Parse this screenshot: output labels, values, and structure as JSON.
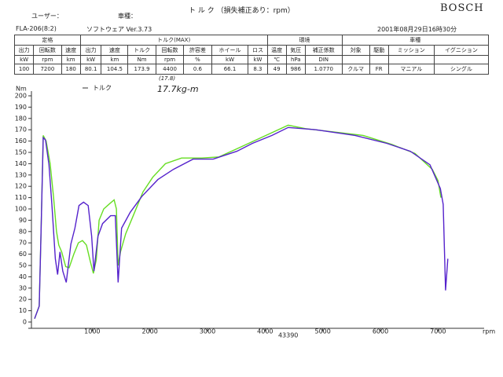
{
  "header": {
    "title": "ト ル ク （損失補正あり：rpm）",
    "brand": "BOSCH",
    "user_label": "ユーザー：",
    "vehicle_label": "車種：",
    "machine": "FLA-206(8:2)",
    "software": "ソフトウェア Ver.3.73",
    "datetime": "2001年08月29日16時30分"
  },
  "table": {
    "groups": [
      {
        "label": "定格",
        "columns": [
          {
            "name": "出力",
            "unit": "kW",
            "value": "100"
          },
          {
            "name": "回転数",
            "unit": "rpm",
            "value": "7200"
          },
          {
            "name": "速度",
            "unit": "km",
            "value": "180"
          }
        ]
      },
      {
        "label": "トルク(MAX)",
        "columns": [
          {
            "name": "出力",
            "unit": "kW",
            "value": "80.1"
          },
          {
            "name": "速度",
            "unit": "km",
            "value": "104.5"
          },
          {
            "name": "トルク",
            "unit": "Nm",
            "value": "173.9"
          },
          {
            "name": "回転数",
            "unit": "rpm",
            "value": "4400"
          },
          {
            "name": "許容差",
            "unit": "%",
            "value": "0.6"
          },
          {
            "name": "ホイール",
            "unit": "kW",
            "value": "66.1"
          },
          {
            "name": "ロス",
            "unit": "kW",
            "value": "8.3"
          }
        ]
      },
      {
        "label": "環境",
        "columns": [
          {
            "name": "温度",
            "unit": "℃",
            "value": "49"
          },
          {
            "name": "気圧",
            "unit": "hPa",
            "value": "986"
          },
          {
            "name": "補正係数",
            "unit": "DIN",
            "value": "1.0770"
          }
        ]
      },
      {
        "label": "車種",
        "columns": [
          {
            "name": "対象",
            "value": "クルマ"
          },
          {
            "name": "駆動",
            "value": "FR"
          },
          {
            "name": "ミッション",
            "value": "マニアル"
          },
          {
            "name": "イグニション",
            "value": "シングル"
          }
        ]
      }
    ]
  },
  "chart_data": {
    "type": "line",
    "y_label": "Nm",
    "x_label": "rpm",
    "legend": "トルク",
    "annotations": [
      "(17.8)",
      "17.7kg-m",
      "43390"
    ],
    "xlim": [
      0,
      7800
    ],
    "ylim": [
      0,
      200
    ],
    "xticks": [
      1000,
      2000,
      3000,
      4000,
      5000,
      6000,
      7000
    ],
    "yticks": [
      0,
      10,
      20,
      30,
      40,
      50,
      60,
      70,
      80,
      90,
      100,
      110,
      120,
      130,
      140,
      150,
      160,
      170,
      180,
      190,
      200
    ],
    "series": [
      {
        "color": "#66dd22",
        "x": [
          0,
          80,
          110,
          150,
          200,
          270,
          330,
          380,
          420,
          470,
          540,
          600,
          680,
          760,
          830,
          900,
          960,
          1020,
          1070,
          1120,
          1200,
          1310,
          1380,
          1420,
          1450,
          1490,
          1580,
          1720,
          1880,
          2050,
          2270,
          2550,
          2900,
          3200,
          3500,
          3800,
          4100,
          4400,
          4700,
          5200,
          5700,
          6200,
          6600,
          6900,
          7000,
          7050
        ],
        "values": [
          3,
          14,
          76,
          165,
          160,
          140,
          110,
          80,
          68,
          62,
          49,
          48,
          60,
          70,
          72,
          68,
          55,
          43,
          55,
          90,
          100,
          105,
          108,
          100,
          50,
          62,
          78,
          95,
          115,
          128,
          140,
          145,
          145,
          146,
          153,
          160,
          167,
          174,
          171,
          168,
          165,
          157,
          149,
          135,
          125,
          110
        ]
      },
      {
        "color": "#5522cc",
        "x": [
          0,
          80,
          110,
          150,
          190,
          250,
          300,
          360,
          400,
          440,
          490,
          550,
          630,
          700,
          770,
          850,
          930,
          990,
          1030,
          1100,
          1180,
          1320,
          1400,
          1450,
          1510,
          1660,
          1860,
          2140,
          2410,
          2750,
          3100,
          3510,
          3780,
          4120,
          4400,
          4880,
          5560,
          6110,
          6520,
          6860,
          7040,
          7090,
          7130,
          7170
        ],
        "values": [
          3,
          14,
          76,
          163,
          161,
          139,
          104,
          56,
          42,
          62,
          45,
          35,
          69,
          83,
          103,
          106,
          103,
          76,
          45,
          76,
          87,
          94,
          94,
          35,
          83,
          97,
          111,
          126,
          135,
          144,
          144,
          151,
          158,
          165,
          172,
          170,
          165,
          158,
          151,
          139,
          118,
          104,
          28,
          56
        ]
      }
    ]
  }
}
